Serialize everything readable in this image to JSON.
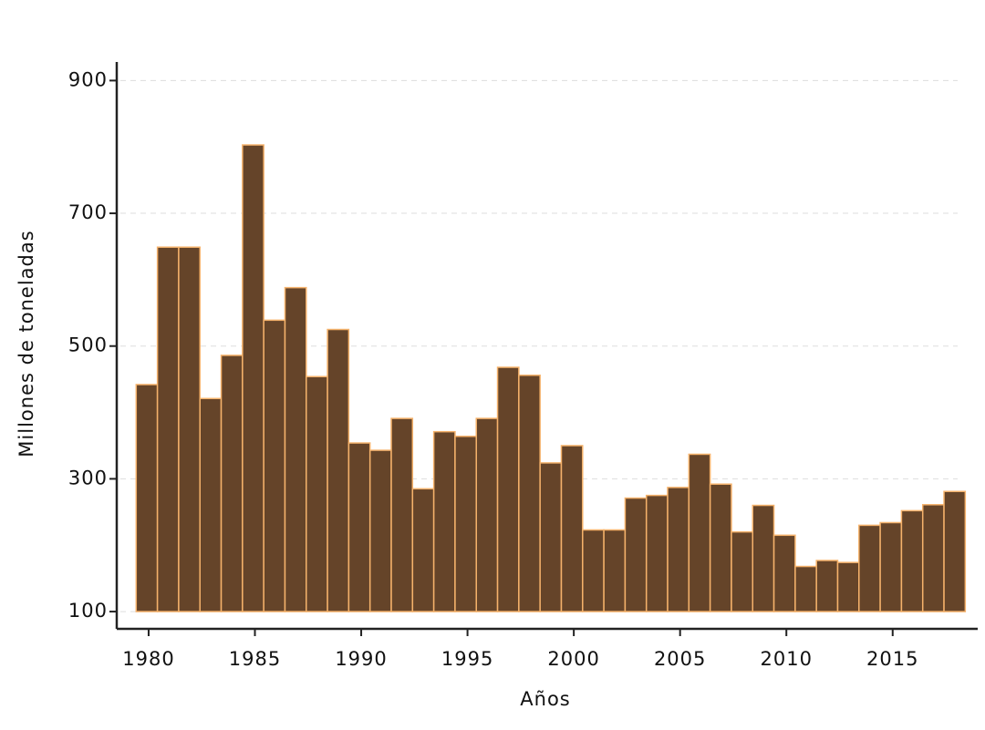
{
  "chart_data": {
    "type": "bar",
    "x_label": "Años",
    "y_label": "Millones de toneladas",
    "x": [
      1980,
      1981,
      1982,
      1983,
      1984,
      1985,
      1986,
      1987,
      1988,
      1989,
      1990,
      1991,
      1992,
      1993,
      1994,
      1995,
      1996,
      1997,
      1998,
      1999,
      2000,
      2001,
      2002,
      2003,
      2004,
      2005,
      2006,
      2007,
      2008,
      2009,
      2010,
      2011,
      2012,
      2013,
      2014,
      2015,
      2016,
      2017,
      2018
    ],
    "values": [
      442,
      649,
      649,
      421,
      486,
      803,
      539,
      588,
      454,
      525,
      354,
      343,
      391,
      285,
      371,
      364,
      391,
      468,
      456,
      324,
      350,
      223,
      223,
      271,
      275,
      287,
      337,
      292,
      220,
      260,
      215,
      168,
      177,
      174,
      230,
      234,
      252,
      261,
      281
    ],
    "bottom": 100,
    "color": "#654429",
    "edgecolor": "#f5b26b",
    "xlim": [
      1978.5,
      2019
    ],
    "xticks": [
      1980,
      1985,
      1990,
      1995,
      2000,
      2005,
      2010,
      2015
    ],
    "ylim": [
      74,
      928
    ],
    "yticks": [
      100,
      300,
      500,
      700,
      900
    ],
    "grid": true
  }
}
